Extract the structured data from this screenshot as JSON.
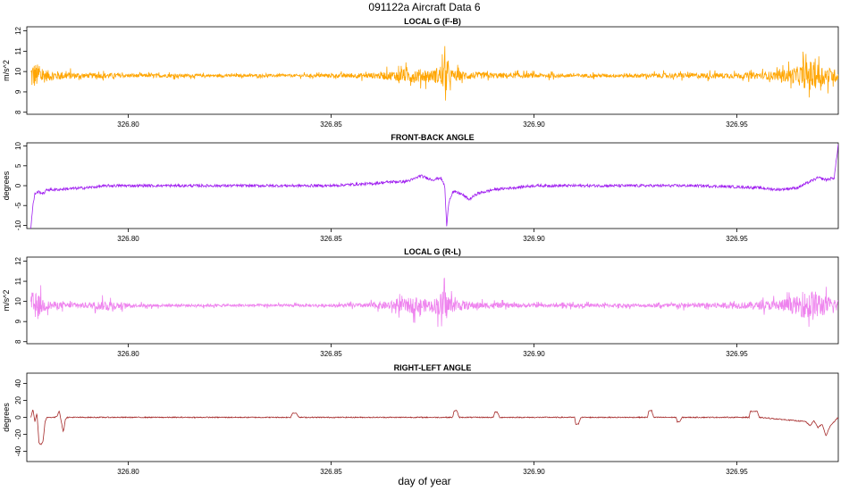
{
  "figure": {
    "title": "091122a   Aircraft Data 6",
    "xlabel": "day of year"
  },
  "chart_data": [
    {
      "type": "line",
      "title": "LOCAL G (F-B)",
      "ylabel": "m/s^2",
      "color": "#FFA500",
      "xlim": [
        326.775,
        326.975
      ],
      "ylim": [
        7.9,
        12.2
      ],
      "x_ticks": [
        "326.80",
        "326.85",
        "326.90",
        "326.95"
      ],
      "x_tick_values": [
        326.8,
        326.85,
        326.9,
        326.95
      ],
      "y_ticks": [
        "8",
        "9",
        "10",
        "11",
        "12"
      ],
      "y_tick_values": [
        8,
        9,
        10,
        11,
        12
      ],
      "series": [
        {
          "baseline": 9.8,
          "x": [
            326.776,
            326.778,
            326.78,
            326.785,
            326.79,
            326.795,
            326.8,
            326.81,
            326.82,
            326.83,
            326.84,
            326.85,
            326.855,
            326.86,
            326.865,
            326.87,
            326.875,
            326.878,
            326.88,
            326.885,
            326.89,
            326.9,
            326.91,
            326.92,
            326.93,
            326.94,
            326.95,
            326.955,
            326.96,
            326.965,
            326.968,
            326.97,
            326.972,
            326.975
          ],
          "amplitude": [
            1.6,
            1.2,
            0.6,
            0.4,
            0.25,
            0.3,
            0.2,
            0.2,
            0.15,
            0.15,
            0.15,
            0.2,
            0.25,
            0.3,
            0.5,
            0.8,
            0.6,
            1.5,
            0.6,
            0.4,
            0.3,
            0.25,
            0.2,
            0.2,
            0.25,
            0.3,
            0.3,
            0.35,
            0.5,
            1.0,
            1.7,
            1.3,
            1.0,
            0.6
          ]
        }
      ]
    },
    {
      "type": "line",
      "title": "FRONT-BACK ANGLE",
      "ylabel": "degrees",
      "color": "#A020F0",
      "xlim": [
        326.775,
        326.975
      ],
      "ylim": [
        -10.8,
        10.8
      ],
      "x_ticks": [
        "326.80",
        "326.85",
        "326.90",
        "326.95"
      ],
      "x_tick_values": [
        326.8,
        326.85,
        326.9,
        326.95
      ],
      "y_ticks": [
        "-10",
        "-5",
        "0",
        "5",
        "10"
      ],
      "y_tick_values": [
        -10,
        -5,
        0,
        5,
        10
      ],
      "series": [
        {
          "x": [
            326.776,
            326.7765,
            326.777,
            326.778,
            326.779,
            326.78,
            326.782,
            326.785,
            326.79,
            326.795,
            326.8,
            326.81,
            326.82,
            326.83,
            326.84,
            326.85,
            326.855,
            326.86,
            326.865,
            326.868,
            326.87,
            326.872,
            326.875,
            326.877,
            326.878,
            326.8785,
            326.879,
            326.88,
            326.882,
            326.884,
            326.886,
            326.888,
            326.89,
            326.895,
            326.9,
            326.91,
            326.92,
            326.93,
            326.94,
            326.95,
            326.955,
            326.96,
            326.965,
            326.968,
            326.97,
            326.972,
            326.974,
            326.975
          ],
          "y": [
            -10.5,
            -5,
            -2,
            -1.5,
            -2,
            -1,
            -1,
            -0.8,
            -0.5,
            0,
            0,
            0,
            0,
            0,
            0,
            0,
            0.3,
            0.5,
            1,
            1,
            1.5,
            2.5,
            1.5,
            2,
            0,
            -10.5,
            -4,
            -1.5,
            -2,
            -3.5,
            -2,
            -1.5,
            -1,
            -0.5,
            0,
            0,
            0,
            0,
            0,
            -0.3,
            -0.5,
            -1,
            -0.5,
            1,
            2,
            1.5,
            2,
            10.5
          ]
        }
      ]
    },
    {
      "type": "line",
      "title": "LOCAL G (R-L)",
      "ylabel": "m/s^2",
      "color": "#EE82EE",
      "xlim": [
        326.775,
        326.975
      ],
      "ylim": [
        7.9,
        12.2
      ],
      "x_ticks": [
        "326.80",
        "326.85",
        "326.90",
        "326.95"
      ],
      "x_tick_values": [
        326.8,
        326.85,
        326.9,
        326.95
      ],
      "y_ticks": [
        "8",
        "9",
        "10",
        "11",
        "12"
      ],
      "y_tick_values": [
        8,
        9,
        10,
        11,
        12
      ],
      "series": [
        {
          "baseline": 9.8,
          "x": [
            326.776,
            326.778,
            326.78,
            326.785,
            326.79,
            326.795,
            326.8,
            326.81,
            326.82,
            326.83,
            326.84,
            326.85,
            326.855,
            326.86,
            326.865,
            326.87,
            326.875,
            326.878,
            326.88,
            326.885,
            326.89,
            326.9,
            326.91,
            326.92,
            326.93,
            326.94,
            326.95,
            326.955,
            326.96,
            326.965,
            326.968,
            326.97,
            326.972,
            326.975
          ],
          "amplitude": [
            1.6,
            1.2,
            0.5,
            0.3,
            0.3,
            0.6,
            0.2,
            0.15,
            0.15,
            0.15,
            0.15,
            0.15,
            0.2,
            0.3,
            0.5,
            0.9,
            0.6,
            1.8,
            0.7,
            0.4,
            0.3,
            0.2,
            0.2,
            0.2,
            0.2,
            0.3,
            0.35,
            0.4,
            0.6,
            1.0,
            1.8,
            1.5,
            1.0,
            0.6
          ]
        }
      ]
    },
    {
      "type": "line",
      "title": "RIGHT-LEFT ANGLE",
      "ylabel": "degrees",
      "color": "#A52A2A",
      "xlim": [
        326.775,
        326.975
      ],
      "ylim": [
        -52,
        52
      ],
      "x_ticks": [
        "326.80",
        "326.85",
        "326.90",
        "326.95"
      ],
      "x_tick_values": [
        326.8,
        326.85,
        326.9,
        326.95
      ],
      "y_ticks": [
        "-40",
        "-20",
        "0",
        "20",
        "40"
      ],
      "y_tick_values": [
        -40,
        -20,
        0,
        20,
        40
      ],
      "series": [
        {
          "x": [
            326.776,
            326.7765,
            326.777,
            326.7775,
            326.778,
            326.7785,
            326.779,
            326.7795,
            326.78,
            326.781,
            326.782,
            326.7825,
            326.783,
            326.784,
            326.7845,
            326.785,
            326.84,
            326.8405,
            326.8415,
            326.842,
            326.88,
            326.8803,
            326.881,
            326.8815,
            326.89,
            326.8903,
            326.891,
            326.8915,
            326.91,
            326.9103,
            326.911,
            326.9115,
            326.928,
            326.9283,
            326.929,
            326.9295,
            326.935,
            326.9353,
            326.936,
            326.9365,
            326.953,
            326.9533,
            326.955,
            326.9555,
            326.967,
            326.968,
            326.969,
            326.97,
            326.971,
            326.972,
            326.973,
            326.974,
            326.975
          ],
          "y": [
            0,
            10,
            -5,
            5,
            -30,
            -32,
            -28,
            -5,
            0,
            0,
            0,
            2,
            8,
            -18,
            -2,
            0,
            0,
            5,
            5,
            0,
            0,
            8,
            8,
            0,
            0,
            6,
            6,
            0,
            0,
            -8,
            -8,
            0,
            0,
            8,
            8,
            0,
            0,
            -5,
            -5,
            0,
            0,
            7,
            7,
            0,
            -5,
            -10,
            -4,
            -12,
            -8,
            -22,
            -10,
            -5,
            0
          ]
        }
      ]
    }
  ]
}
